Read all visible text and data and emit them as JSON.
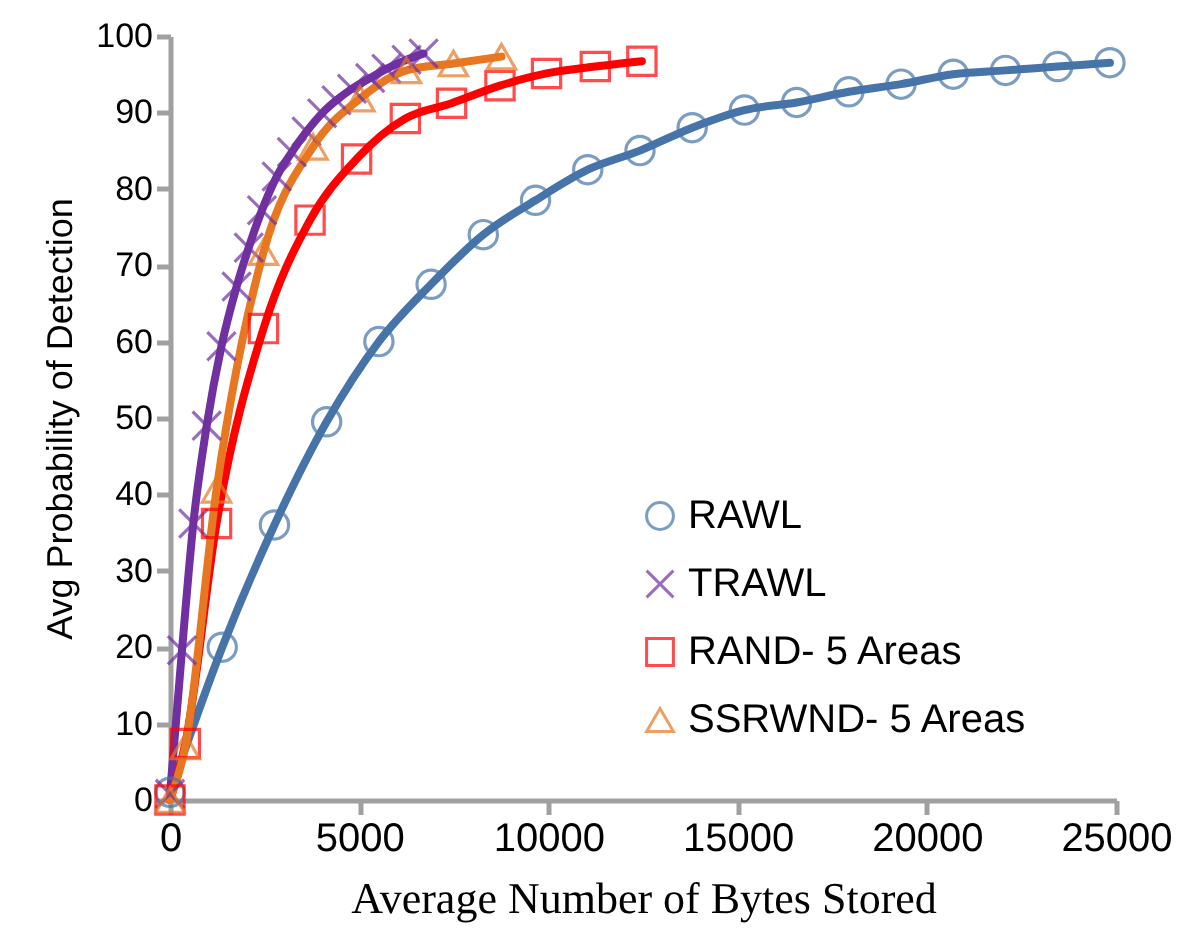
{
  "chart_data": {
    "type": "line",
    "xlabel": "Average Number of Bytes Stored",
    "ylabel": "Avg Probability of Detection",
    "xlim": [
      0,
      25000
    ],
    "xticks": [
      0,
      5000,
      10000,
      15000,
      20000,
      25000
    ],
    "ylim": [
      0,
      100
    ],
    "yticks": [
      0,
      10,
      20,
      30,
      40,
      50,
      60,
      70,
      80,
      90,
      100
    ],
    "grid": false,
    "legend": "bottom right",
    "line_style": "solid",
    "series": [
      {
        "name": "RAWL",
        "color": "#4674a9",
        "marker": "circle",
        "x": [
          0,
          1380,
          2760,
          4140,
          5520,
          6900,
          8280,
          9660,
          11040,
          12420,
          13800,
          15180,
          16560,
          17940,
          19320,
          20700,
          22080,
          23460,
          24840
        ],
        "values": [
          1,
          20,
          36,
          49.5,
          60,
          67.5,
          74,
          78.5,
          82.5,
          85,
          88,
          90.3,
          91.3,
          92.7,
          93.7,
          95,
          95.5,
          96,
          96.5
        ]
      },
      {
        "name": "TRAWL",
        "color": "#7030a0",
        "marker": "cross",
        "x": [
          0,
          317,
          617,
          970,
          1360,
          1760,
          2080,
          2430,
          2820,
          3220,
          3610,
          4020,
          4400,
          4810,
          5290,
          5720,
          6250,
          6700
        ],
        "values": [
          0.8,
          19.6,
          36.2,
          49,
          59.4,
          67.2,
          72.3,
          77.2,
          81.6,
          84.8,
          87.5,
          89.9,
          91.6,
          93.1,
          94.5,
          95.7,
          96.9,
          97.7
        ]
      },
      {
        "name": "RAND- 5 Areas",
        "color": "#ff0000",
        "marker": "square",
        "x": [
          0,
          405,
          1230,
          2470,
          3700,
          4930,
          6220,
          7440,
          8720,
          9950,
          11240,
          12470
        ],
        "values": [
          0,
          7.4,
          36.2,
          61.7,
          75.9,
          83.9,
          89.2,
          91.2,
          93.5,
          95.1,
          96,
          96.7
        ]
      },
      {
        "name": "SSRWND- 5 Areas",
        "color": "#e87722",
        "marker": "triangle",
        "x": [
          0,
          405,
          1230,
          2470,
          3780,
          5020,
          6250,
          7490,
          8760
        ],
        "values": [
          0,
          7,
          40.6,
          71.7,
          85.5,
          91.8,
          95.5,
          96.4,
          97.3
        ]
      }
    ]
  }
}
